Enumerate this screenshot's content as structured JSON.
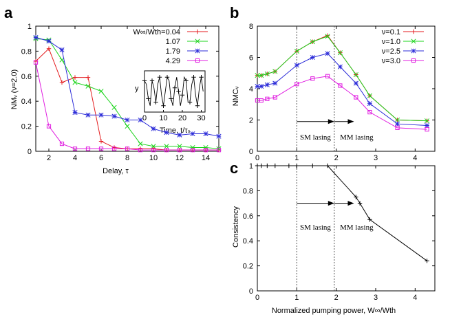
{
  "panels": {
    "a": "a",
    "b": "b",
    "c": "c"
  },
  "chart_data": [
    {
      "panel": "a",
      "type": "line",
      "xlabel": "Delay, τ",
      "ylabel": "NMᵥ (ν=2.0)",
      "xlim": [
        1,
        15
      ],
      "ylim": [
        0,
        1
      ],
      "xticks": [
        2,
        4,
        6,
        8,
        10,
        12,
        14
      ],
      "yticks": [
        0,
        0.2,
        0.4,
        0.6,
        0.8,
        1
      ],
      "ytick_labels": [
        "0",
        "0.2",
        "0.4",
        "0.6",
        "0.8",
        "1"
      ],
      "legend_title": "W∞/Wth=0.04",
      "legend_position": "top-right",
      "series": [
        {
          "name": "0.04",
          "label": "",
          "color": "#e41a1c",
          "marker": "plus",
          "x": [
            1,
            2,
            3,
            4,
            5,
            6,
            7,
            8,
            9,
            10,
            11,
            12,
            13,
            14,
            15
          ],
          "y": [
            0.72,
            0.82,
            0.55,
            0.59,
            0.59,
            0.08,
            0.03,
            0.02,
            0.02,
            0.02,
            0.01,
            0.01,
            0.01,
            0.01,
            0.01
          ]
        },
        {
          "name": "1.07",
          "label": "1.07",
          "color": "#1cd41c",
          "marker": "x",
          "x": [
            1,
            2,
            3,
            4,
            5,
            6,
            7,
            8,
            9,
            10,
            11,
            12,
            13,
            14,
            15
          ],
          "y": [
            0.9,
            0.89,
            0.73,
            0.55,
            0.52,
            0.48,
            0.35,
            0.2,
            0.06,
            0.04,
            0.04,
            0.04,
            0.03,
            0.03,
            0.02
          ]
        },
        {
          "name": "1.79",
          "label": "1.79",
          "color": "#2b2bd8",
          "marker": "star",
          "x": [
            1,
            2,
            3,
            4,
            5,
            6,
            7,
            8,
            9,
            10,
            11,
            12,
            13,
            14,
            15
          ],
          "y": [
            0.91,
            0.88,
            0.81,
            0.31,
            0.29,
            0.29,
            0.28,
            0.25,
            0.25,
            0.18,
            0.15,
            0.13,
            0.14,
            0.14,
            0.12
          ]
        },
        {
          "name": "4.29",
          "label": "4.29",
          "color": "#e01ce0",
          "marker": "square",
          "x": [
            1,
            2,
            3,
            4,
            5,
            6,
            7,
            8,
            9,
            10,
            11,
            12,
            13,
            14,
            15
          ],
          "y": [
            0.71,
            0.2,
            0.06,
            0.02,
            0.02,
            0.02,
            0.02,
            0.02,
            0.01,
            0.01,
            0.01,
            0.01,
            0.01,
            0.01,
            0.01
          ]
        }
      ],
      "inset": {
        "ylabel": "y",
        "xlabel": "Time, t/τₛ",
        "xticks": [
          0,
          10,
          20,
          30
        ],
        "xlim": [
          0,
          32
        ],
        "x": [
          0,
          1,
          2,
          3,
          4,
          5,
          6,
          7,
          8,
          9,
          10,
          11,
          12,
          13,
          14,
          15,
          16,
          17,
          18,
          19,
          20,
          21,
          22,
          23,
          24,
          25,
          26,
          27,
          28,
          29,
          30,
          31
        ],
        "y": [
          0.8,
          0.7,
          0.3,
          0.1,
          0.8,
          0.6,
          0.2,
          0.7,
          0.9,
          0.4,
          0.1,
          0.5,
          0.9,
          0.8,
          0.3,
          0.1,
          0.6,
          0.9,
          0.5,
          0.1,
          0.4,
          0.9,
          0.8,
          0.2,
          0.2,
          0.7,
          0.9,
          0.4,
          0.1,
          0.6,
          0.9,
          0.5
        ]
      }
    },
    {
      "panel": "b",
      "type": "line",
      "xlabel": "",
      "ylabel": "NMCᵥ",
      "xlim": [
        0,
        4.5
      ],
      "ylim": [
        0,
        8
      ],
      "xticks": [
        0,
        1,
        2,
        3,
        4
      ],
      "yticks": [
        0,
        2,
        4,
        6,
        8
      ],
      "legend_position": "top-right",
      "vlines": [
        1,
        1.95
      ],
      "arrows": [
        [
          1,
          1.9,
          1.95,
          1.9
        ],
        [
          1.95,
          1.9,
          2.45,
          1.9
        ]
      ],
      "annotations": [
        "SM lasing",
        "MM lasing"
      ],
      "series": [
        {
          "name": "ν=0.1",
          "color": "#e41a1c",
          "marker": "plus",
          "x": [
            0,
            0.1,
            0.25,
            0.45,
            1.0,
            1.4,
            1.78,
            2.1,
            2.5,
            2.85,
            3.55,
            4.3
          ],
          "y": [
            4.85,
            4.85,
            4.95,
            5.1,
            6.4,
            7.0,
            7.4,
            6.3,
            4.9,
            3.55,
            2.0,
            1.95
          ]
        },
        {
          "name": "ν=1.0",
          "color": "#1cd41c",
          "marker": "x",
          "x": [
            0,
            0.1,
            0.25,
            0.45,
            1.0,
            1.4,
            1.78,
            2.1,
            2.5,
            2.85,
            3.55,
            4.3
          ],
          "y": [
            4.85,
            4.85,
            4.95,
            5.1,
            6.4,
            7.0,
            7.35,
            6.3,
            4.9,
            3.55,
            2.0,
            1.95
          ]
        },
        {
          "name": "ν=2.5",
          "color": "#2b2bd8",
          "marker": "star",
          "x": [
            0,
            0.1,
            0.25,
            0.45,
            1.0,
            1.4,
            1.78,
            2.1,
            2.5,
            2.85,
            3.55,
            4.3
          ],
          "y": [
            4.15,
            4.15,
            4.25,
            4.35,
            5.5,
            6.0,
            6.25,
            5.4,
            4.35,
            3.05,
            1.75,
            1.65
          ]
        },
        {
          "name": "ν=3.0",
          "color": "#e01ce0",
          "marker": "square",
          "x": [
            0,
            0.1,
            0.25,
            0.45,
            1.0,
            1.4,
            1.78,
            2.1,
            2.5,
            2.85,
            3.55,
            4.3
          ],
          "y": [
            3.25,
            3.25,
            3.35,
            3.45,
            4.3,
            4.65,
            4.8,
            4.2,
            3.45,
            2.5,
            1.5,
            1.4
          ]
        }
      ]
    },
    {
      "panel": "c",
      "type": "line",
      "xlabel": "Normalized pumping power, W∞/Wth",
      "ylabel": "Consistency",
      "xlim": [
        0,
        4.5
      ],
      "ylim": [
        0,
        1
      ],
      "xticks": [
        0,
        1,
        2,
        3,
        4
      ],
      "yticks": [
        0,
        0.2,
        0.4,
        0.6,
        0.8,
        1
      ],
      "ytick_labels": [
        "0",
        "0.2",
        "0.4",
        "0.6",
        "0.8",
        "1"
      ],
      "vlines": [
        1,
        1.95
      ],
      "arrows": [
        [
          1,
          0.7,
          1.95,
          0.7
        ],
        [
          1.95,
          0.7,
          2.45,
          0.7
        ]
      ],
      "annotations": [
        "SM lasing",
        "MM lasing"
      ],
      "series": [
        {
          "name": "consistency",
          "color": "#000000",
          "marker": "plus",
          "x": [
            0,
            0.1,
            0.25,
            0.45,
            0.8,
            1.0,
            1.4,
            1.78,
            2.5,
            2.6,
            2.85,
            4.3
          ],
          "y": [
            1,
            1,
            1,
            1,
            1,
            1,
            1,
            1,
            0.75,
            0.7,
            0.57,
            0.24
          ]
        }
      ]
    }
  ]
}
